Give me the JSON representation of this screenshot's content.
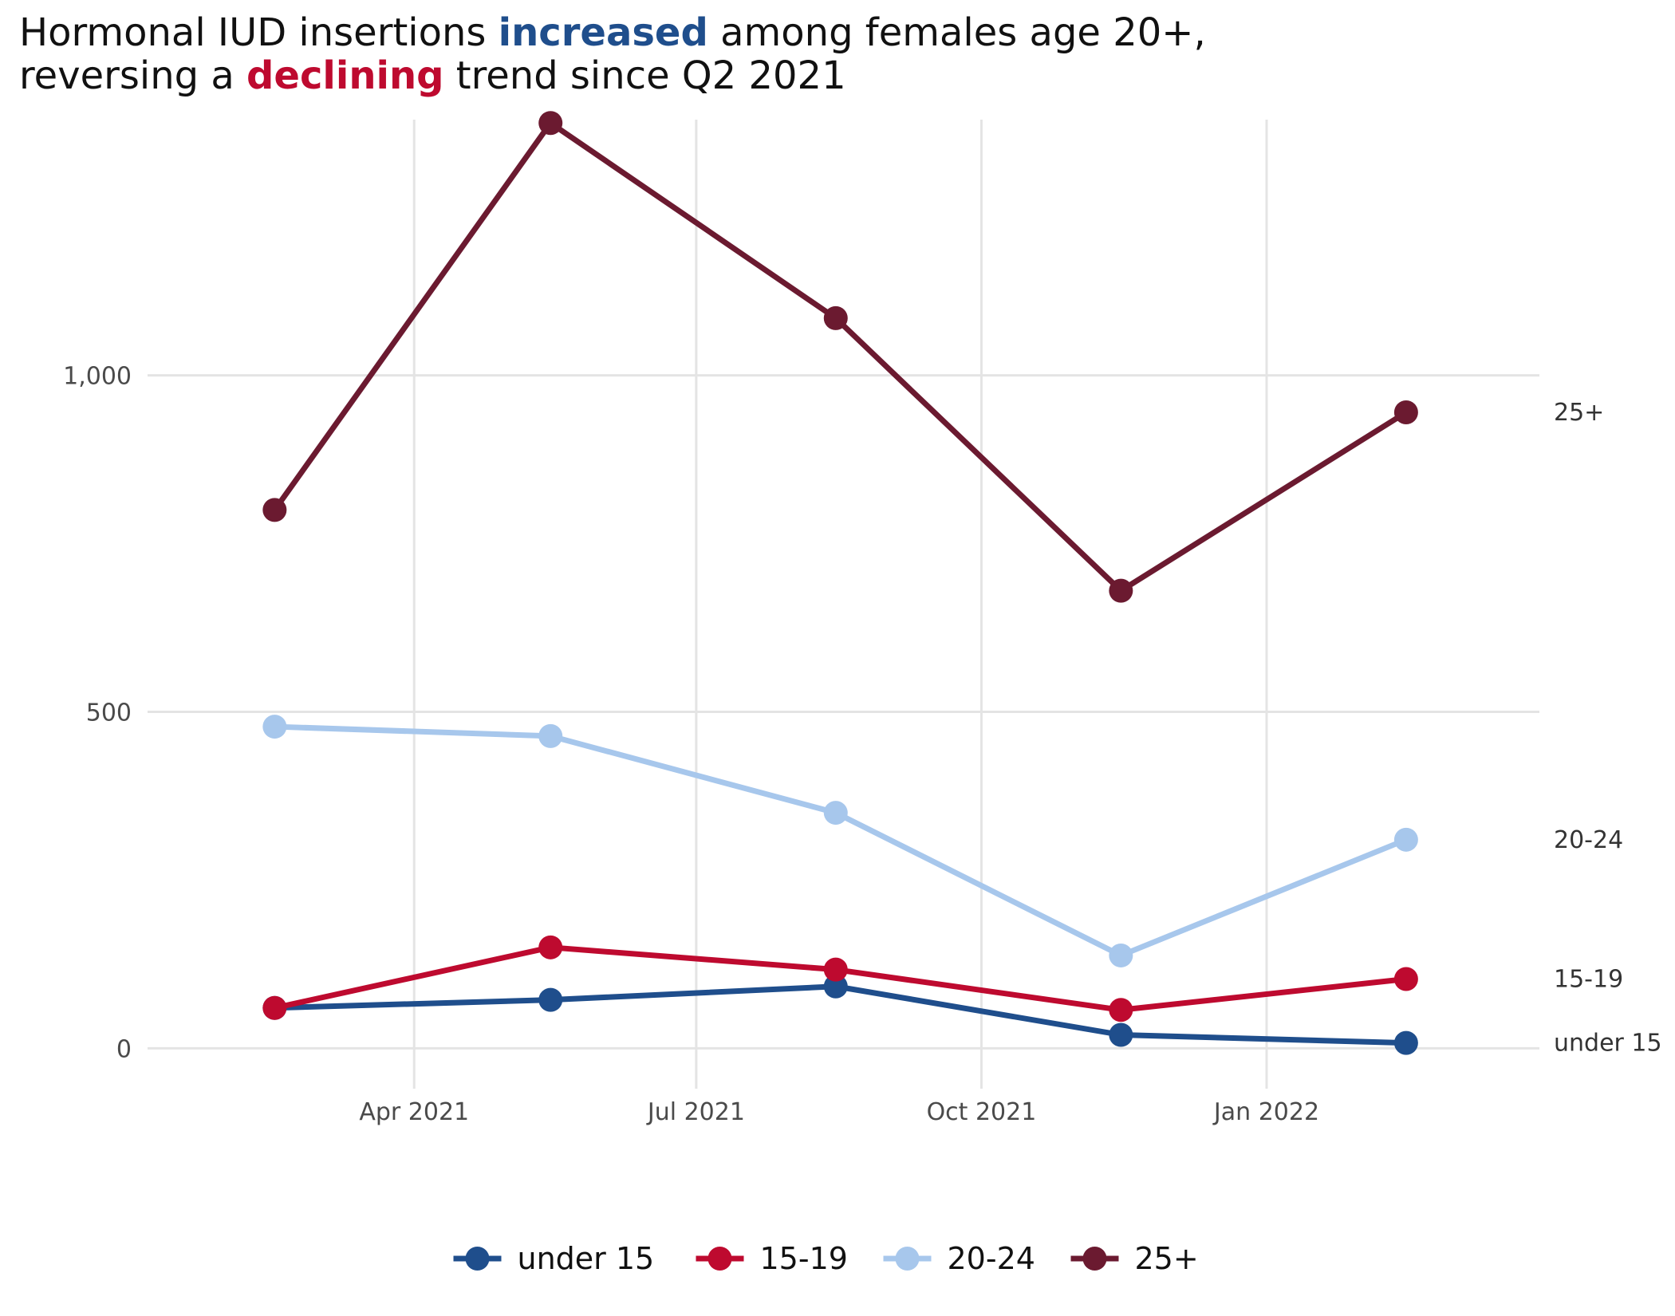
{
  "title": {
    "line1_before": "Hormonal IUD insertions ",
    "line1_highlight": "increased",
    "line1_after": " among females age 20+,",
    "line2_before": "reversing a ",
    "line2_highlight": "declining",
    "line2_after": " trend since Q2 2021",
    "highlight_colors": {
      "increased": "#1f4e8c",
      "declining": "#be0a2f"
    }
  },
  "chart_data": {
    "type": "line",
    "x": [
      "2021-02-15",
      "2021-05-15",
      "2021-08-15",
      "2021-11-15",
      "2022-02-15"
    ],
    "x_ticks": [
      {
        "date": "2021-04-01",
        "label": "Apr 2021"
      },
      {
        "date": "2021-07-01",
        "label": "Jul 2021"
      },
      {
        "date": "2021-10-01",
        "label": "Oct 2021"
      },
      {
        "date": "2022-01-01",
        "label": "Jan 2022"
      }
    ],
    "y_ticks": [
      {
        "value": 0,
        "label": "0"
      },
      {
        "value": 500,
        "label": "500"
      },
      {
        "value": 1000,
        "label": "1,000"
      }
    ],
    "ylim": [
      -60,
      1380
    ],
    "xlim": [
      "2021-01-05",
      "2022-03-30"
    ],
    "grid": true,
    "legend_position": "bottom",
    "series": [
      {
        "name": "under 15",
        "color": "#1f4e8c",
        "values": [
          60,
          72,
          92,
          20,
          8
        ]
      },
      {
        "name": "15-19",
        "color": "#be0a2f",
        "values": [
          60,
          150,
          117,
          57,
          103
        ]
      },
      {
        "name": "20-24",
        "color": "#a7c7ec",
        "values": [
          478,
          464,
          350,
          138,
          310
        ]
      },
      {
        "name": "25+",
        "color": "#6b1a30",
        "values": [
          800,
          1375,
          1085,
          680,
          945
        ]
      }
    ]
  }
}
